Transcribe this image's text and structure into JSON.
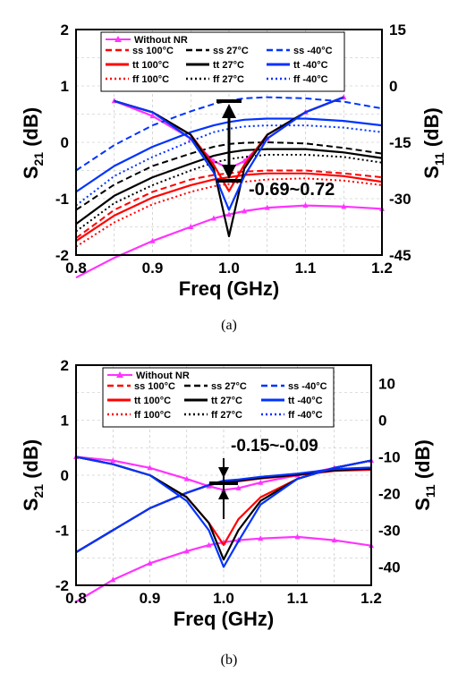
{
  "chart_data": [
    {
      "type": "line",
      "panel_label": "(a)",
      "xlabel": "Freq (GHz)",
      "ylabel_left": "S21 (dB)",
      "ylabel_right": "S11 (dB)",
      "xlim": [
        0.8,
        1.2
      ],
      "ylim_left": [
        -2,
        2
      ],
      "ylim_right": [
        -45,
        15
      ],
      "x_ticks": [
        "0.8",
        "0.9",
        "1.0",
        "1.1",
        "1.2"
      ],
      "y_ticks_left": [
        "2",
        "1",
        "0",
        "-1",
        "-2"
      ],
      "y_ticks_right": [
        "15",
        "0",
        "-15",
        "-30",
        "-45"
      ],
      "grid": true,
      "legend_position": "top",
      "annotation": "-0.69~0.72",
      "annotation_range": [
        0.72,
        -0.69
      ],
      "x": [
        0.8,
        0.85,
        0.9,
        0.95,
        0.98,
        1.0,
        1.02,
        1.05,
        1.1,
        1.15,
        1.2
      ],
      "series": [
        {
          "name": "Without NR",
          "quantity": "S21",
          "axis": "left",
          "color": "#ff33ff",
          "style": "solid",
          "marker": "triangle",
          "values": [
            -2.4,
            -2.05,
            -1.75,
            -1.5,
            -1.35,
            -1.28,
            -1.22,
            -1.16,
            -1.12,
            -1.14,
            -1.18
          ]
        },
        {
          "name": "Without NR",
          "quantity": "S11",
          "axis": "right",
          "color": "#ff33ff",
          "style": "solid",
          "marker": "triangle",
          "values": [
            null,
            -4,
            -8,
            -14,
            -20,
            -22,
            -20,
            -14,
            -7,
            -3,
            null
          ]
        },
        {
          "name": "ss 100°C",
          "quantity": "S21",
          "axis": "left",
          "color": "#ff0000",
          "style": "dash",
          "values": [
            -1.7,
            -1.2,
            -0.88,
            -0.66,
            -0.58,
            -0.55,
            -0.52,
            -0.5,
            -0.5,
            -0.55,
            -0.62
          ]
        },
        {
          "name": "ss 27°C",
          "quantity": "S21",
          "axis": "left",
          "color": "#000000",
          "style": "dash",
          "values": [
            -1.2,
            -0.75,
            -0.42,
            -0.2,
            -0.08,
            -0.03,
            -0.01,
            0.0,
            -0.02,
            -0.1,
            -0.2
          ]
        },
        {
          "name": "ss -40°C",
          "quantity": "S21",
          "axis": "left",
          "color": "#0033ff",
          "style": "dash",
          "values": [
            -0.5,
            -0.05,
            0.3,
            0.55,
            0.68,
            0.74,
            0.78,
            0.8,
            0.78,
            0.72,
            0.6
          ]
        },
        {
          "name": "tt 100°C",
          "quantity": "S21",
          "axis": "left",
          "color": "#ff0000",
          "style": "solid",
          "values": [
            -1.75,
            -1.3,
            -0.98,
            -0.76,
            -0.66,
            -0.62,
            -0.58,
            -0.55,
            -0.55,
            -0.6,
            -0.7
          ]
        },
        {
          "name": "tt 27°C",
          "quantity": "S21",
          "axis": "left",
          "color": "#000000",
          "style": "solid",
          "values": [
            -1.45,
            -0.95,
            -0.62,
            -0.38,
            -0.24,
            -0.18,
            -0.14,
            -0.12,
            -0.12,
            -0.18,
            -0.28
          ]
        },
        {
          "name": "tt -40°C",
          "quantity": "S21",
          "axis": "left",
          "color": "#0033ff",
          "style": "solid",
          "values": [
            -0.88,
            -0.42,
            -0.08,
            0.18,
            0.3,
            0.36,
            0.4,
            0.42,
            0.42,
            0.38,
            0.3
          ]
        },
        {
          "name": "ff 100°C",
          "quantity": "S21",
          "axis": "left",
          "color": "#ff0000",
          "style": "dot",
          "values": [
            -1.85,
            -1.42,
            -1.1,
            -0.88,
            -0.78,
            -0.74,
            -0.7,
            -0.66,
            -0.64,
            -0.68,
            -0.76
          ]
        },
        {
          "name": "ff 27°C",
          "quantity": "S21",
          "axis": "left",
          "color": "#000000",
          "style": "dot",
          "values": [
            -1.58,
            -1.08,
            -0.76,
            -0.5,
            -0.36,
            -0.3,
            -0.26,
            -0.22,
            -0.22,
            -0.26,
            -0.36
          ]
        },
        {
          "name": "ff -40°C",
          "quantity": "S21",
          "axis": "left",
          "color": "#0033ff",
          "style": "dot",
          "values": [
            -1.12,
            -0.6,
            -0.26,
            0.02,
            0.18,
            0.24,
            0.28,
            0.3,
            0.3,
            0.26,
            0.18
          ]
        },
        {
          "name": "tt 100°C",
          "quantity": "S11",
          "axis": "right",
          "color": "#ff0000",
          "style": "solid",
          "values": [
            null,
            -4,
            -7,
            -13,
            -21,
            -28,
            -21,
            -13,
            -7,
            -3,
            null
          ]
        },
        {
          "name": "tt 27°C",
          "quantity": "S11",
          "axis": "right",
          "color": "#000000",
          "style": "solid",
          "values": [
            null,
            -4,
            -7,
            -13,
            -22,
            -40,
            -22,
            -13,
            -7,
            -3,
            null
          ]
        },
        {
          "name": "tt -40°C",
          "quantity": "S11",
          "axis": "right",
          "color": "#0033ff",
          "style": "solid",
          "values": [
            null,
            -4,
            -7,
            -14,
            -23,
            -33,
            -24,
            -14,
            -7,
            -3,
            null
          ]
        }
      ]
    },
    {
      "type": "line",
      "panel_label": "(b)",
      "xlabel": "Freq (GHz)",
      "ylabel_left": "S21 (dB)",
      "ylabel_right": "S11 (dB)",
      "xlim": [
        0.8,
        1.2
      ],
      "ylim_left": [
        -2,
        2
      ],
      "ylim_right": [
        -45,
        15
      ],
      "x_ticks": [
        "0.8",
        "0.9",
        "1.0",
        "1.1",
        "1.2"
      ],
      "y_ticks_left": [
        "2",
        "1",
        "0",
        "-1",
        "-2"
      ],
      "y_ticks_right": [
        "10",
        "0",
        "-10",
        "-20",
        "-30",
        "-40"
      ],
      "grid": true,
      "legend_position": "top",
      "annotation": "-0.15~-0.09",
      "annotation_range": [
        -0.09,
        -0.15
      ],
      "x": [
        0.8,
        0.85,
        0.9,
        0.95,
        0.98,
        1.0,
        1.02,
        1.05,
        1.1,
        1.15,
        1.2
      ],
      "series": [
        {
          "name": "Without NR",
          "quantity": "S21",
          "axis": "left",
          "color": "#ff33ff",
          "style": "solid",
          "marker": "triangle",
          "values": [
            -2.3,
            -1.9,
            -1.6,
            -1.38,
            -1.27,
            -1.22,
            -1.18,
            -1.15,
            -1.12,
            -1.18,
            -1.28
          ]
        },
        {
          "name": "Without NR",
          "quantity": "S11",
          "axis": "right",
          "color": "#ff33ff",
          "style": "solid",
          "marker": "triangle",
          "values": [
            -10,
            -11,
            -13,
            -16,
            -18,
            -19,
            -18.5,
            -17,
            -15,
            -13,
            -11
          ]
        },
        {
          "name": "tt 100°C",
          "quantity": "S21",
          "axis": "left",
          "color": "#ff0000",
          "style": "solid",
          "values": [
            -1.4,
            -1.0,
            -0.6,
            -0.32,
            -0.18,
            -0.13,
            -0.11,
            -0.06,
            0.0,
            0.08,
            0.1
          ]
        },
        {
          "name": "tt 27°C",
          "quantity": "S21",
          "axis": "left",
          "color": "#000000",
          "style": "solid",
          "values": [
            -1.4,
            -1.0,
            -0.6,
            -0.32,
            -0.18,
            -0.12,
            -0.1,
            -0.05,
            0.01,
            0.09,
            0.12
          ]
        },
        {
          "name": "tt -40°C",
          "quantity": "S21",
          "axis": "left",
          "color": "#0033ff",
          "style": "solid",
          "values": [
            -1.4,
            -1.0,
            -0.6,
            -0.32,
            -0.18,
            -0.1,
            -0.08,
            -0.03,
            0.03,
            0.11,
            0.14
          ]
        },
        {
          "name": "tt 100°C",
          "quantity": "S11",
          "axis": "right",
          "color": "#ff0000",
          "style": "solid",
          "values": [
            -10,
            -12,
            -15,
            -21,
            -28,
            -34,
            -27,
            -21,
            -16,
            -13,
            -11
          ]
        },
        {
          "name": "tt 27°C",
          "quantity": "S11",
          "axis": "right",
          "color": "#000000",
          "style": "solid",
          "values": [
            -10,
            -12,
            -15,
            -21,
            -28,
            -38,
            -30,
            -22,
            -16,
            -13,
            -11
          ]
        },
        {
          "name": "tt -40°C",
          "quantity": "S11",
          "axis": "right",
          "color": "#0033ff",
          "style": "solid",
          "values": [
            -10,
            -12,
            -15,
            -22,
            -30,
            -40,
            -33,
            -23,
            -16,
            -13,
            -11
          ]
        }
      ]
    }
  ],
  "legend_entries": [
    [
      "ss 100°C",
      "ss 27°C",
      "ss -40°C"
    ],
    [
      "tt 100°C",
      "tt 27°C",
      "tt -40°C"
    ],
    [
      "ff 100°C",
      "ff 27°C",
      "ff -40°C"
    ]
  ],
  "legend_title": "Without NR",
  "colors": {
    "red": "#ff0000",
    "black": "#000000",
    "blue": "#0033ff",
    "magenta": "#ff33ff",
    "grid": "#bbbbbb"
  }
}
